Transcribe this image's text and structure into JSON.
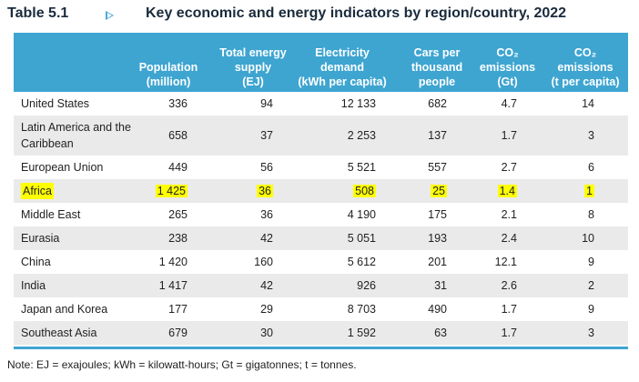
{
  "title": {
    "table_label": "Table 5.1",
    "icon": "triangle-right-icon",
    "text": "Key economic and energy indicators by region/country, 2022"
  },
  "columns": [
    {
      "lines": [
        "Population",
        "(million)"
      ]
    },
    {
      "lines": [
        "Total energy",
        "supply",
        "(EJ)"
      ]
    },
    {
      "lines": [
        "Electricity",
        "demand",
        "(kWh per capita)"
      ]
    },
    {
      "lines": [
        "Cars per",
        "thousand",
        "people"
      ]
    },
    {
      "lines": [
        "CO₂",
        "emissions",
        "(Gt)"
      ]
    },
    {
      "lines": [
        "CO₂",
        "emissions",
        "(t per capita)"
      ]
    }
  ],
  "rows": [
    {
      "name": "United States",
      "values": [
        "336",
        "94",
        "12 133",
        "682",
        "4.7",
        "14"
      ],
      "highlight": false
    },
    {
      "name": "Latin America and the Caribbean",
      "values": [
        "658",
        "37",
        "2 253",
        "137",
        "1.7",
        "3"
      ],
      "highlight": false
    },
    {
      "name": "European Union",
      "values": [
        "449",
        "56",
        "5 521",
        "557",
        "2.7",
        "6"
      ],
      "highlight": false
    },
    {
      "name": "Africa",
      "values": [
        "1 425",
        "36",
        "508",
        "25",
        "1.4",
        "1"
      ],
      "highlight": true
    },
    {
      "name": "Middle East",
      "values": [
        "265",
        "36",
        "4 190",
        "175",
        "2.1",
        "8"
      ],
      "highlight": false
    },
    {
      "name": "Eurasia",
      "values": [
        "238",
        "42",
        "5 051",
        "193",
        "2.4",
        "10"
      ],
      "highlight": false
    },
    {
      "name": "China",
      "values": [
        "1 420",
        "160",
        "5 612",
        "201",
        "12.1",
        "9"
      ],
      "highlight": false
    },
    {
      "name": "India",
      "values": [
        "1 417",
        "42",
        "926",
        "31",
        "2.6",
        "2"
      ],
      "highlight": false
    },
    {
      "name": "Japan and Korea",
      "values": [
        "177",
        "29",
        "8 703",
        "490",
        "1.7",
        "9"
      ],
      "highlight": false
    },
    {
      "name": "Southeast Asia",
      "values": [
        "679",
        "30",
        "1 592",
        "63",
        "1.7",
        "3"
      ],
      "highlight": false
    }
  ],
  "note": "Note: EJ = exajoules; kWh = kilowatt-hours; Gt = gigatonnes; t = tonnes.",
  "colors": {
    "header": "#3ea5d1",
    "highlight": "#ffff00",
    "shade": "#eaeaea"
  }
}
